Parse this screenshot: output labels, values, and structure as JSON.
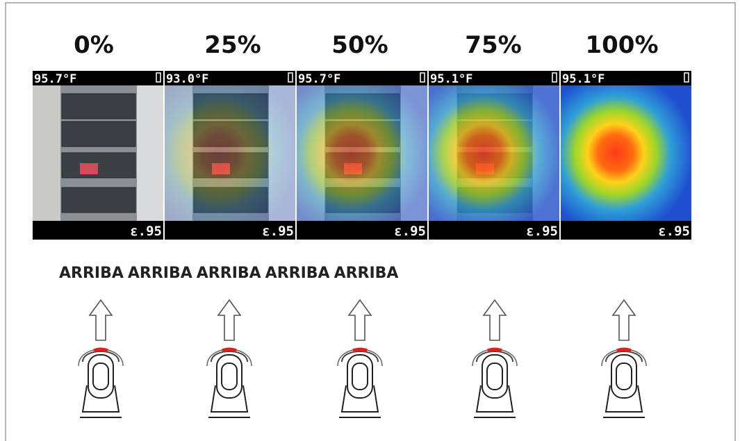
{
  "panels": [
    {
      "label": "0%",
      "temperature": "95.7°F",
      "emissivity": "ε.95"
    },
    {
      "label": "25%",
      "temperature": "93.0°F",
      "emissivity": "ε.95"
    },
    {
      "label": "50%",
      "temperature": "95.7°F",
      "emissivity": "ε.95"
    },
    {
      "label": "75%",
      "temperature": "95.1°F",
      "emissivity": "ε.95"
    },
    {
      "label": "100%",
      "temperature": "95.1°F",
      "emissivity": "ε.95"
    }
  ],
  "instructions": [
    "ARRIBA",
    "ARRIBA",
    "ARRIBA",
    "ARRIBA",
    "ARRIBA"
  ]
}
